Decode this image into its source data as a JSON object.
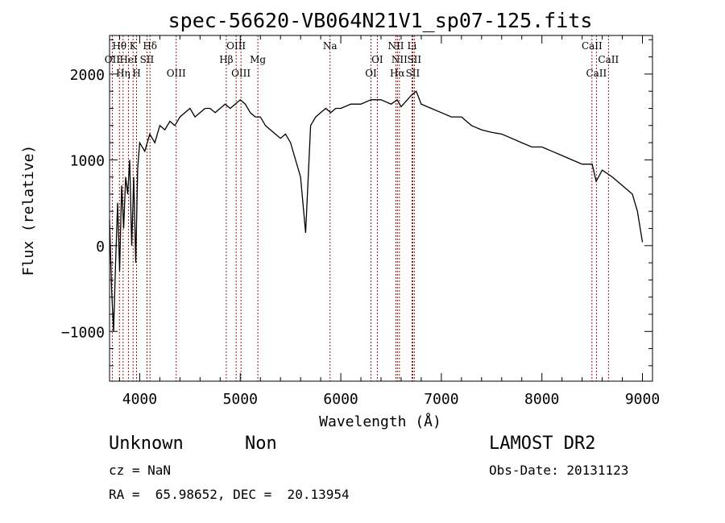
{
  "chart_data": {
    "type": "line",
    "title": "spec-56620-VB064N21V1_sp07-125.fits",
    "xlabel": "Wavelength (Å)",
    "ylabel": "Flux (relative)",
    "xlim": [
      3700,
      9100
    ],
    "ylim": [
      -1580,
      2450
    ],
    "xticks": [
      4000,
      5000,
      6000,
      7000,
      8000,
      9000
    ],
    "yticks": [
      -1000,
      0,
      1000,
      2000
    ],
    "xtick_labels": [
      "4000",
      "5000",
      "6000",
      "7000",
      "8000",
      "9000"
    ],
    "ytick_labels": [
      "−1000",
      "0",
      "1000",
      "2000"
    ],
    "grid": false,
    "line_color": "#000000",
    "marker_color": "#8b0000",
    "series": [
      {
        "x": [
          3700,
          3720,
          3740,
          3760,
          3780,
          3800,
          3820,
          3840,
          3860,
          3880,
          3900,
          3920,
          3940,
          3960,
          3980,
          4000,
          4050,
          4100,
          4150,
          4200,
          4250,
          4300,
          4350,
          4400,
          4450,
          4500,
          4550,
          4600,
          4650,
          4700,
          4750,
          4800,
          4850,
          4900,
          4950,
          5000,
          5050,
          5100,
          5150,
          5200,
          5250,
          5300,
          5350,
          5400,
          5450,
          5500,
          5550,
          5600,
          5650,
          5700,
          5750,
          5800,
          5850,
          5900,
          5950,
          6000,
          6100,
          6200,
          6300,
          6400,
          6500,
          6560,
          6600,
          6700,
          6750,
          6800,
          6900,
          7000,
          7100,
          7200,
          7300,
          7400,
          7500,
          7600,
          7700,
          7800,
          7900,
          8000,
          8100,
          8200,
          8300,
          8400,
          8500,
          8540,
          8600,
          8700,
          8800,
          8900,
          8950,
          9000
        ],
        "y": [
          300,
          -500,
          -1000,
          -200,
          500,
          -300,
          700,
          200,
          800,
          600,
          1000,
          0,
          800,
          -200,
          900,
          1200,
          1100,
          1300,
          1200,
          1400,
          1350,
          1450,
          1400,
          1500,
          1550,
          1600,
          1500,
          1550,
          1600,
          1600,
          1550,
          1600,
          1650,
          1600,
          1650,
          1700,
          1650,
          1550,
          1500,
          1500,
          1400,
          1350,
          1300,
          1250,
          1300,
          1200,
          1000,
          800,
          150,
          1400,
          1500,
          1550,
          1600,
          1550,
          1600,
          1600,
          1650,
          1650,
          1700,
          1700,
          1650,
          1700,
          1620,
          1750,
          1800,
          1650,
          1600,
          1550,
          1500,
          1500,
          1400,
          1350,
          1320,
          1300,
          1250,
          1200,
          1150,
          1150,
          1100,
          1050,
          1000,
          950,
          950,
          750,
          880,
          800,
          700,
          600,
          400,
          40
        ]
      }
    ],
    "line_markers": [
      {
        "label": "Hθ",
        "x": 3798,
        "row": 0
      },
      {
        "label": "Hη",
        "x": 3835,
        "row": 2
      },
      {
        "label": "K",
        "x": 3934,
        "row": 0
      },
      {
        "label": "H",
        "x": 3969,
        "row": 2
      },
      {
        "label": "Hδ",
        "x": 4102,
        "row": 0
      },
      {
        "label": "OII",
        "x": 3727,
        "row": 1
      },
      {
        "label": "HeI",
        "x": 3889,
        "row": 1
      },
      {
        "label": "SII",
        "x": 4072,
        "row": 1
      },
      {
        "label": "OIII",
        "x": 4363,
        "row": 2
      },
      {
        "label": "Hβ",
        "x": 4861,
        "row": 1
      },
      {
        "label": "OIII",
        "x": 4959,
        "row": 0
      },
      {
        "label": "OIII",
        "x": 5007,
        "row": 2
      },
      {
        "label": "Mg",
        "x": 5175,
        "row": 1
      },
      {
        "label": "Na",
        "x": 5893,
        "row": 0
      },
      {
        "label": "OI",
        "x": 6300,
        "row": 2
      },
      {
        "label": "OI",
        "x": 6363,
        "row": 1
      },
      {
        "label": "NII",
        "x": 6548,
        "row": 0
      },
      {
        "label": "Hα",
        "x": 6563,
        "row": 2
      },
      {
        "label": "NII",
        "x": 6583,
        "row": 1
      },
      {
        "label": "Li",
        "x": 6708,
        "row": 0
      },
      {
        "label": "SII",
        "x": 6716,
        "row": 2
      },
      {
        "label": "SII",
        "x": 6731,
        "row": 1
      },
      {
        "label": "CaII",
        "x": 8498,
        "row": 0
      },
      {
        "label": "CaII",
        "x": 8542,
        "row": 2
      },
      {
        "label": "CaII",
        "x": 8662,
        "row": 1
      }
    ]
  },
  "info": {
    "object_class": "Unknown",
    "subclass": "Non",
    "survey": "LAMOST DR2",
    "redshift": "cz = NaN",
    "obs_date": "Obs-Date: 20131123",
    "coordinates": "RA =  65.98652, DEC =  20.13954"
  }
}
